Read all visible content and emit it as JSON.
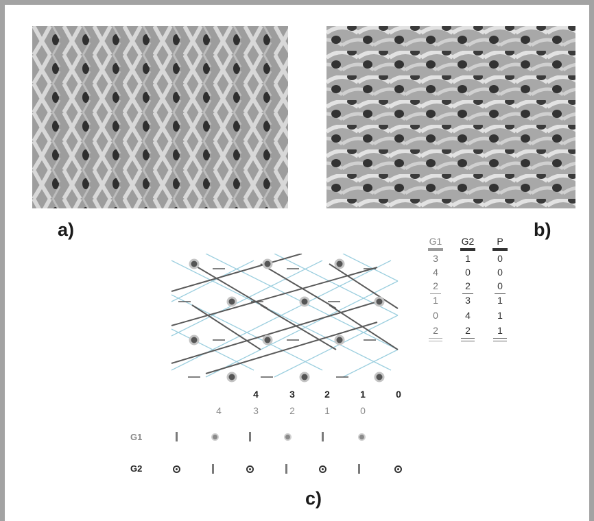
{
  "labels": {
    "a": "a)",
    "b": "b)",
    "c": "c)"
  },
  "colors": {
    "frame": "#a3a3a3",
    "blue_lines": "#9ccfdf",
    "dark_lines": "#555555",
    "light_grey": "#8a8a8a"
  },
  "axis": {
    "top": [
      "4",
      "3",
      "2",
      "1",
      "0"
    ],
    "bottom": [
      "4",
      "3",
      "2",
      "1",
      "0"
    ]
  },
  "table": {
    "headers": [
      "G1",
      "G2",
      "P"
    ],
    "rows": [
      [
        "3",
        "1",
        "0"
      ],
      [
        "4",
        "0",
        "0"
      ],
      [
        "2",
        "2",
        "0"
      ],
      [
        "1",
        "3",
        "1"
      ],
      [
        "0",
        "4",
        "1"
      ],
      [
        "2",
        "2",
        "1"
      ]
    ]
  },
  "rows": {
    "g1": "G1",
    "g2": "G2"
  }
}
